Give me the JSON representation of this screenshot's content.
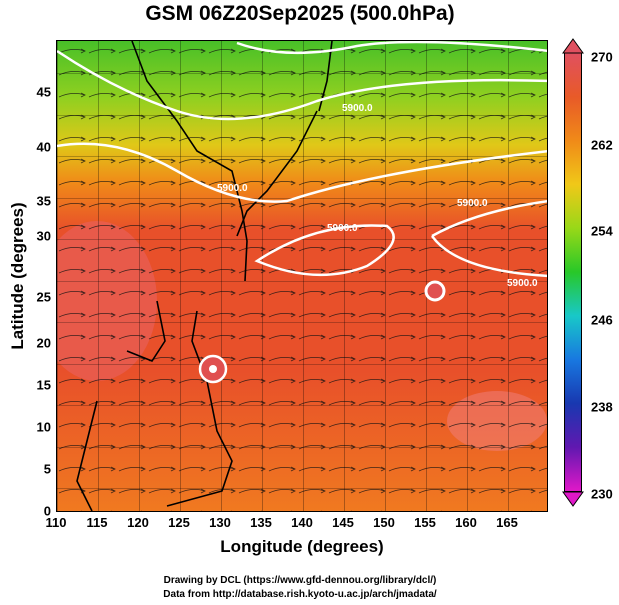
{
  "title": "GSM 06Z20Sep2025 (500.0hPa)",
  "axes": {
    "xlabel": "Longitude (degrees)",
    "ylabel": "Latitude (degrees)",
    "x_ticks": [
      "110",
      "115",
      "120",
      "125",
      "130",
      "135",
      "140",
      "145",
      "150",
      "155",
      "160",
      "165"
    ],
    "y_ticks": [
      "45",
      "40",
      "35",
      "30",
      "25",
      "20",
      "15",
      "10",
      "5",
      "0"
    ]
  },
  "contour_labels": [
    "5900.0",
    "5900.0",
    "5900.0",
    "5900.0",
    "5900.0"
  ],
  "colorbar": {
    "ticks": [
      "270",
      "262",
      "254",
      "246",
      "238",
      "230"
    ],
    "colors": [
      "#e05060",
      "#e85a28",
      "#f08a18",
      "#f0c818",
      "#98d818",
      "#28c828",
      "#18c8c8",
      "#1878e0",
      "#1838b0",
      "#6018b0",
      "#e018c8"
    ]
  },
  "credits": {
    "line1": "Drawing by DCL (https://www.gfd-dennou.org/library/dcl/)",
    "line2": "Data from http://database.rish.kyoto-u.ac.jp/arch/jmadata/"
  }
}
